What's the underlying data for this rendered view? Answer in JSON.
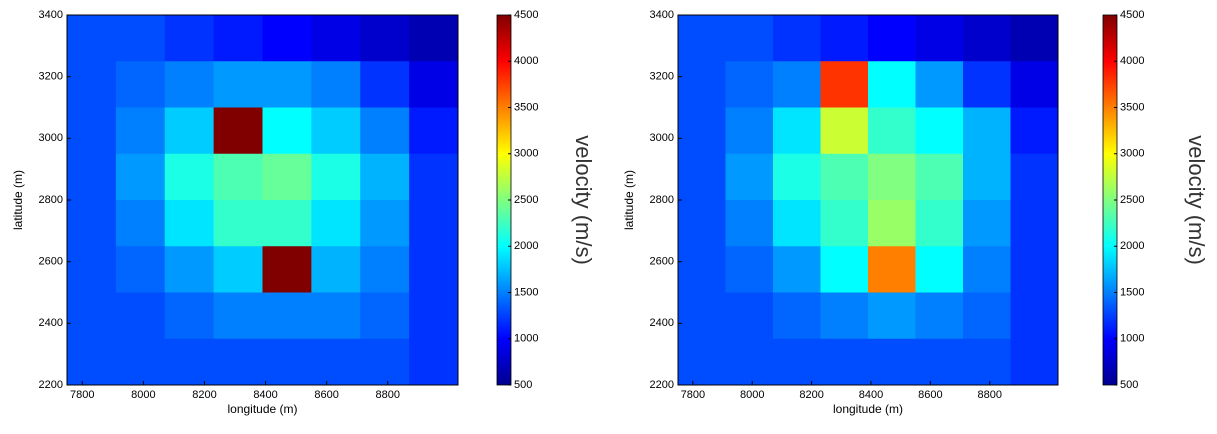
{
  "chart_data": [
    {
      "type": "heatmap",
      "colormap": "jet",
      "xlabel": "longitude (m)",
      "ylabel": "latitude (m)",
      "xlim": [
        7750,
        9030
      ],
      "ylim": [
        2200,
        3400
      ],
      "xticks": [
        7800,
        8000,
        8200,
        8400,
        8600,
        8800
      ],
      "yticks": [
        2200,
        2400,
        2600,
        2800,
        3000,
        3200,
        3400
      ],
      "x": [
        7830,
        7990,
        8150,
        8310,
        8470,
        8630,
        8790,
        8950
      ],
      "y": [
        3325,
        3175,
        3025,
        2875,
        2725,
        2575,
        2425,
        2275
      ],
      "z": [
        [
          1300,
          1300,
          1200,
          1100,
          1000,
          900,
          800,
          700
        ],
        [
          1300,
          1400,
          1500,
          1600,
          1600,
          1500,
          1200,
          900
        ],
        [
          1300,
          1500,
          1800,
          4500,
          2000,
          1800,
          1500,
          1100
        ],
        [
          1300,
          1600,
          2100,
          2300,
          2400,
          2100,
          1700,
          1200
        ],
        [
          1300,
          1500,
          1900,
          2200,
          2200,
          1900,
          1600,
          1200
        ],
        [
          1300,
          1400,
          1600,
          1800,
          4500,
          1700,
          1500,
          1200
        ],
        [
          1300,
          1300,
          1400,
          1500,
          1500,
          1500,
          1400,
          1200
        ],
        [
          1300,
          1300,
          1300,
          1300,
          1300,
          1300,
          1300,
          1200
        ]
      ],
      "colorbar": {
        "label": "velocity (m/s)",
        "lim": [
          500,
          4500
        ],
        "ticks": [
          500,
          1000,
          1500,
          2000,
          2500,
          3000,
          3500,
          4000,
          4500
        ]
      }
    },
    {
      "type": "heatmap",
      "colormap": "jet",
      "xlabel": "longitude (m)",
      "ylabel": "latitude (m)",
      "xlim": [
        7750,
        9030
      ],
      "ylim": [
        2200,
        3400
      ],
      "xticks": [
        7800,
        8000,
        8200,
        8400,
        8600,
        8800
      ],
      "yticks": [
        2200,
        2400,
        2600,
        2800,
        3000,
        3200,
        3400
      ],
      "x": [
        7830,
        7990,
        8150,
        8310,
        8470,
        8630,
        8790,
        8950
      ],
      "y": [
        3325,
        3175,
        3025,
        2875,
        2725,
        2575,
        2425,
        2275
      ],
      "z": [
        [
          1300,
          1300,
          1200,
          1100,
          1000,
          900,
          800,
          700
        ],
        [
          1300,
          1400,
          1500,
          3800,
          2000,
          1600,
          1200,
          900
        ],
        [
          1300,
          1500,
          1900,
          2800,
          2200,
          2000,
          1700,
          1100
        ],
        [
          1300,
          1600,
          2100,
          2300,
          2500,
          2300,
          1700,
          1200
        ],
        [
          1300,
          1500,
          1900,
          2200,
          2600,
          2200,
          1600,
          1200
        ],
        [
          1300,
          1400,
          1600,
          2000,
          3500,
          2000,
          1500,
          1200
        ],
        [
          1300,
          1300,
          1400,
          1500,
          1600,
          1500,
          1400,
          1200
        ],
        [
          1300,
          1300,
          1300,
          1300,
          1300,
          1300,
          1300,
          1200
        ]
      ],
      "colorbar": {
        "label": "velocity (m/s)",
        "lim": [
          500,
          4500
        ],
        "ticks": [
          500,
          1000,
          1500,
          2000,
          2500,
          3000,
          3500,
          4000,
          4500
        ]
      }
    }
  ]
}
